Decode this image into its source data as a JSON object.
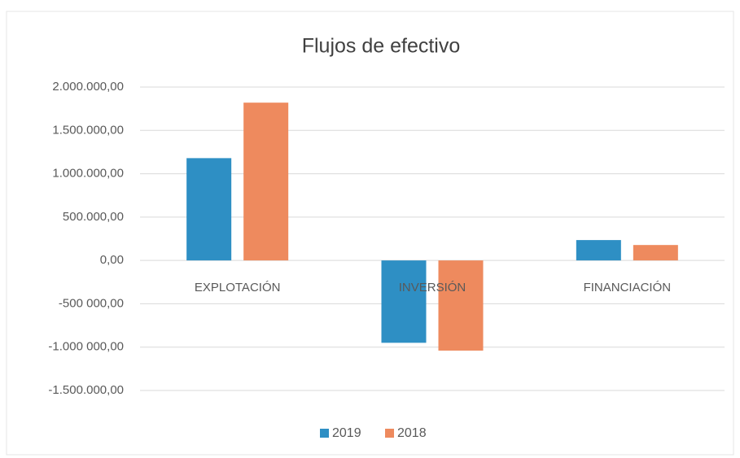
{
  "chart_data": {
    "type": "bar",
    "title": "Flujos de efectivo",
    "categories": [
      "EXPLOTACIÓN",
      "INVERSIÓN",
      "FINANCIACIÓN"
    ],
    "series": [
      {
        "name": "2019",
        "color": "#2e8fc4",
        "values": [
          1180000,
          -950000,
          235000
        ]
      },
      {
        "name": "2018",
        "color": "#ee8a5e",
        "values": [
          1820000,
          -1040000,
          178000
        ]
      }
    ],
    "ylim": [
      -1500000,
      2000000
    ],
    "yticks": [
      {
        "value": 2000000,
        "label": "2.000.000,00"
      },
      {
        "value": 1500000,
        "label": "1.500.000,00"
      },
      {
        "value": 1000000,
        "label": "1.000.000,00"
      },
      {
        "value": 500000,
        "label": "500.000,00"
      },
      {
        "value": 0,
        "label": "0,00"
      },
      {
        "value": -500000,
        "label": "-500 000,00"
      },
      {
        "value": -1000000,
        "label": "-1.000 000,00"
      },
      {
        "value": -1500000,
        "label": "-1.500.000,00"
      }
    ],
    "grid": true,
    "legend": "bottom"
  }
}
